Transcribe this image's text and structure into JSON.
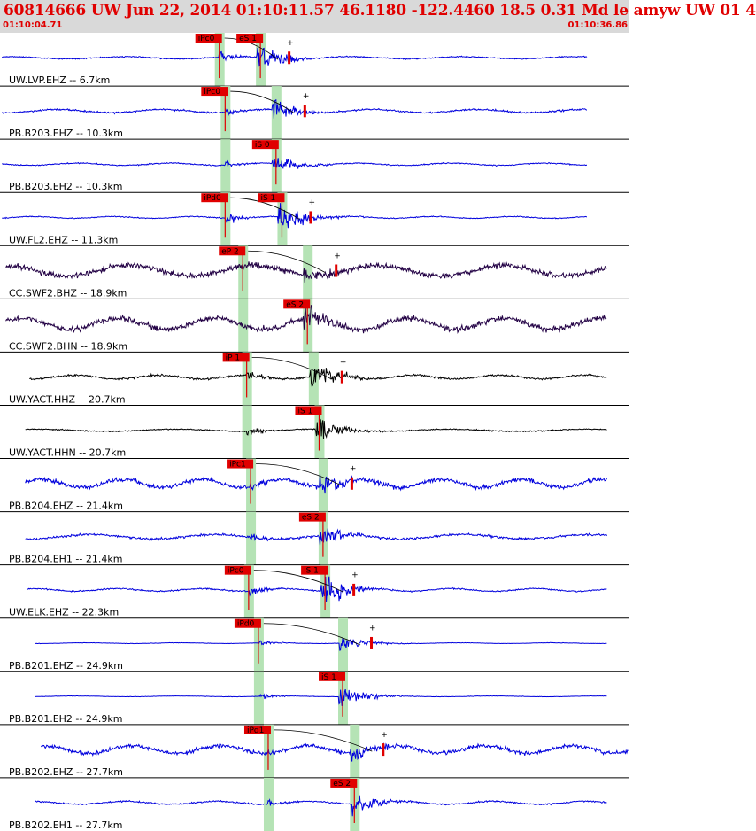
{
  "header": {
    "title": "60814666 UW Jun 22, 2014 01:10:11.57    46.1180 -122.4460 18.5 0.31 Md le amyw UW 01   4",
    "start_time": "01:10:04.71",
    "end_time": "01:10:36.86"
  },
  "colors": {
    "title": "#e00000",
    "pick_box": "#e00000",
    "band": "#b5e3b5",
    "tick": "#e00000"
  },
  "chart_data": {
    "type": "line",
    "title": "60814666 UW Jun 22, 2014 01:10:11.57    46.1180 -122.4460 18.5 0.31 Md le amyw UW 01   4",
    "x_unit": "time",
    "xlim": [
      "01:10:04.71",
      "01:10:36.86"
    ],
    "grid": false,
    "traces": [
      {
        "label": "UW.LVP.EHZ -- 6.7km",
        "color": "#0000dd",
        "p_pick": "iPc0",
        "s_pick": "eS 1",
        "p_time": 11.2,
        "s_time": 13.3,
        "amplitude": 0.6,
        "noise": 0.06,
        "t_start": 0.1,
        "t_end": 30.0
      },
      {
        "label": "PB.B203.EHZ -- 10.3km",
        "color": "#0000dd",
        "p_pick": "iPc0",
        "s_pick": "",
        "p_time": 11.5,
        "s_time": 14.1,
        "amplitude": 0.45,
        "noise": 0.09,
        "t_start": 0.1,
        "t_end": 30.0
      },
      {
        "label": "PB.B203.EH2 -- 10.3km",
        "color": "#0000dd",
        "p_pick": "",
        "s_pick": "iS 0",
        "p_time": 11.5,
        "s_time": 14.1,
        "amplitude": 0.4,
        "noise": 0.06,
        "t_start": 0.1,
        "t_end": 30.0
      },
      {
        "label": "UW.FL2.EHZ -- 11.3km",
        "color": "#0000dd",
        "p_pick": "iPd0",
        "s_pick": "iS 1",
        "p_time": 11.5,
        "s_time": 14.4,
        "amplitude": 0.7,
        "noise": 0.05,
        "t_start": 0.1,
        "t_end": 30.0
      },
      {
        "label": "CC.SWF2.BHZ -- 18.9km",
        "color": "#220044",
        "p_pick": "eP 2",
        "s_pick": "",
        "p_time": 12.4,
        "s_time": 15.7,
        "amplitude": 0.35,
        "noise": 0.28,
        "t_start": 0.3,
        "t_end": 31.0
      },
      {
        "label": "CC.SWF2.BHN -- 18.9km",
        "color": "#220044",
        "p_pick": "",
        "s_pick": "eS 2",
        "p_time": 12.4,
        "s_time": 15.7,
        "amplitude": 0.55,
        "noise": 0.3,
        "t_start": 0.3,
        "t_end": 31.0
      },
      {
        "label": "UW.YACT.HHZ -- 20.7km",
        "color": "#000000",
        "p_pick": "iP 1",
        "s_pick": "",
        "p_time": 12.6,
        "s_time": 16.0,
        "amplitude": 0.6,
        "noise": 0.1,
        "t_start": 1.5,
        "t_end": 31.0
      },
      {
        "label": "UW.YACT.HHN -- 20.7km",
        "color": "#000000",
        "p_pick": "",
        "s_pick": "iS 1",
        "p_time": 12.6,
        "s_time": 16.3,
        "amplitude": 0.55,
        "noise": 0.06,
        "t_start": 1.3,
        "t_end": 31.0
      },
      {
        "label": "PB.B204.EHZ -- 21.4km",
        "color": "#0000dd",
        "p_pick": "iPc1",
        "s_pick": "",
        "p_time": 12.8,
        "s_time": 16.5,
        "amplitude": 0.55,
        "noise": 0.22,
        "t_start": 1.3,
        "t_end": 31.0
      },
      {
        "label": "PB.B204.EH1 -- 21.4km",
        "color": "#0000dd",
        "p_pick": "",
        "s_pick": "eS 2",
        "p_time": 12.8,
        "s_time": 16.5,
        "amplitude": 0.45,
        "noise": 0.12,
        "t_start": 1.3,
        "t_end": 31.0
      },
      {
        "label": "UW.ELK.EHZ -- 22.3km",
        "color": "#0000dd",
        "p_pick": "iPc0",
        "s_pick": "iS 1",
        "p_time": 12.7,
        "s_time": 16.6,
        "amplitude": 0.6,
        "noise": 0.07,
        "t_start": 1.4,
        "t_end": 31.0
      },
      {
        "label": "PB.B201.EHZ -- 24.9km",
        "color": "#0000dd",
        "p_pick": "iPd0",
        "s_pick": "",
        "p_time": 13.2,
        "s_time": 17.5,
        "amplitude": 0.35,
        "noise": 0.02,
        "t_start": 1.8,
        "t_end": 31.0
      },
      {
        "label": "PB.B201.EH2 -- 24.9km",
        "color": "#0000dd",
        "p_pick": "",
        "s_pick": "iS 1",
        "p_time": 13.2,
        "s_time": 17.5,
        "amplitude": 0.4,
        "noise": 0.02,
        "t_start": 1.8,
        "t_end": 31.0
      },
      {
        "label": "PB.B202.EHZ -- 27.7km",
        "color": "#0000dd",
        "p_pick": "iPd1",
        "s_pick": "",
        "p_time": 13.7,
        "s_time": 18.1,
        "amplitude": 0.45,
        "noise": 0.2,
        "t_start": 2.1,
        "t_end": 32.1
      },
      {
        "label": "PB.B202.EH1 -- 27.7km",
        "color": "#0000dd",
        "p_pick": "",
        "s_pick": "eS 2",
        "p_time": 13.7,
        "s_time": 18.1,
        "amplitude": 0.45,
        "noise": 0.08,
        "t_start": 1.8,
        "t_end": 31.0
      }
    ]
  }
}
